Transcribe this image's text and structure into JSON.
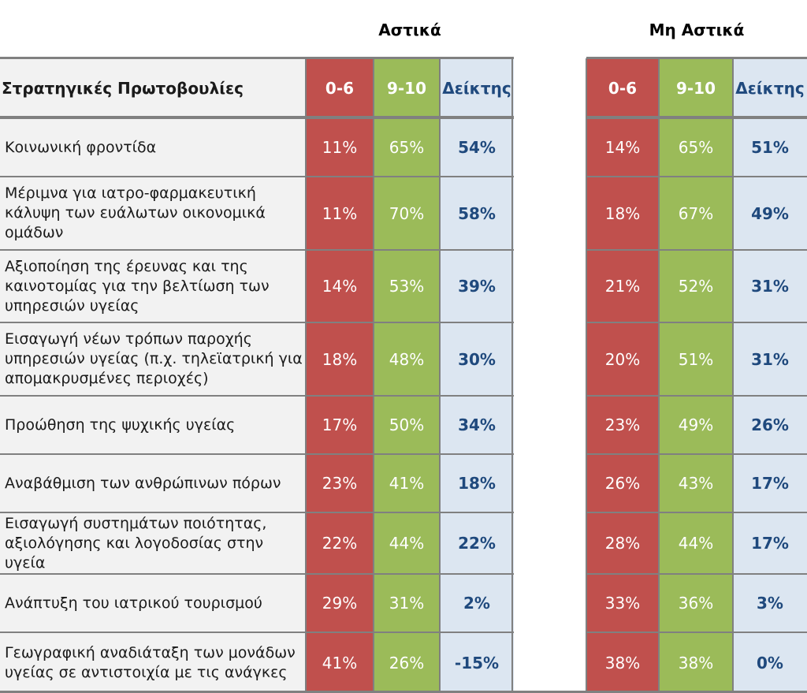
{
  "groups": [
    {
      "title": "Αστικά"
    },
    {
      "title": "Μη Αστικά"
    }
  ],
  "header": {
    "label": "Στρατηγικές Πρωτοβουλίες",
    "col_low": "0-6",
    "col_high": "9-10",
    "col_index": "Δείκτης"
  },
  "rows": [
    {
      "label": "Κοινωνική  φροντίδα",
      "urban": {
        "low": "11%",
        "high": "65%",
        "index": "54%"
      },
      "rural": {
        "low": "14%",
        "high": "65%",
        "index": "51%"
      }
    },
    {
      "label": "Μέριμνα για ιατρο-φαρμακευτική κάλυψη των ευάλωτων οικονομικά ομάδων",
      "urban": {
        "low": "11%",
        "high": "70%",
        "index": "58%"
      },
      "rural": {
        "low": "18%",
        "high": "67%",
        "index": "49%"
      }
    },
    {
      "label": "Αξιοποίηση της έρευνας και της καινοτομίας για την βελτίωση των υπηρεσιών υγείας",
      "urban": {
        "low": "14%",
        "high": "53%",
        "index": "39%"
      },
      "rural": {
        "low": "21%",
        "high": "52%",
        "index": "31%"
      }
    },
    {
      "label": "Εισαγωγή νέων τρόπων παροχής υπηρεσιών υγείας (π.χ. τηλεϊατρική για απομακρυσμένες περιοχές)",
      "urban": {
        "low": "18%",
        "high": "48%",
        "index": "30%"
      },
      "rural": {
        "low": "20%",
        "high": "51%",
        "index": "31%"
      }
    },
    {
      "label": "Προώθηση της ψυχικής υγείας",
      "urban": {
        "low": "17%",
        "high": "50%",
        "index": "34%"
      },
      "rural": {
        "low": "23%",
        "high": "49%",
        "index": "26%"
      }
    },
    {
      "label": "Αναβάθμιση των ανθρώπινων πόρων",
      "urban": {
        "low": "23%",
        "high": "41%",
        "index": "18%"
      },
      "rural": {
        "low": "26%",
        "high": "43%",
        "index": "17%"
      }
    },
    {
      "label": "Εισαγωγή συστημάτων ποιότητας, αξιολόγησης και λογοδοσίας  στην υγεία",
      "urban": {
        "low": "22%",
        "high": "44%",
        "index": "22%"
      },
      "rural": {
        "low": "28%",
        "high": "44%",
        "index": "17%"
      }
    },
    {
      "label": "Ανάπτυξη του ιατρικού τουρισμού",
      "urban": {
        "low": "29%",
        "high": "31%",
        "index": "2%"
      },
      "rural": {
        "low": "33%",
        "high": "36%",
        "index": "3%"
      }
    },
    {
      "label": "Γεωγραφική αναδιάταξη των μονάδων υγείας σε αντιστοιχία με τις ανάγκες",
      "urban": {
        "low": "41%",
        "high": "26%",
        "index": "-15%"
      },
      "rural": {
        "low": "38%",
        "high": "38%",
        "index": "0%"
      }
    }
  ],
  "chart_data": {
    "type": "table",
    "groups": [
      "Αστικά",
      "Μη Αστικά"
    ],
    "columns": [
      "0-6",
      "9-10",
      "Δείκτης"
    ],
    "row_header": "Στρατηγικές Πρωτοβουλίες",
    "colors": {
      "low": "#c0504d",
      "high": "#9bbb59",
      "index_bg": "#dce6f1",
      "index_text": "#1f497d"
    }
  }
}
